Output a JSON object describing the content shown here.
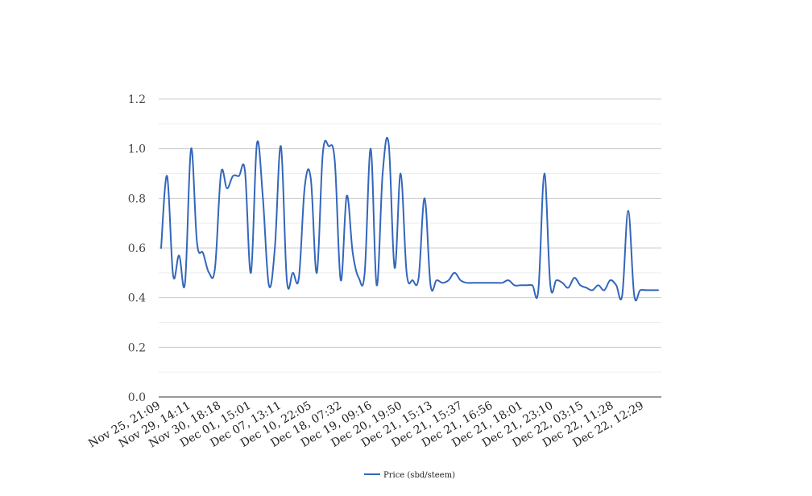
{
  "chart_data": {
    "type": "line",
    "title": "",
    "xlabel": "",
    "ylabel": "",
    "ylim": [
      0,
      1.2
    ],
    "yticks": [
      0.0,
      0.2,
      0.4,
      0.6,
      0.8,
      1.0,
      1.2
    ],
    "ytick_labels": [
      "0.0",
      "0.2",
      "0.4",
      "0.6",
      "0.8",
      "1.0",
      "1.2"
    ],
    "x_tick_labels": [
      "Nov 25, 21:09",
      "Nov 29, 14:11",
      "Nov 30, 18:18",
      "Dec 01, 15:01",
      "Dec 07, 13:11",
      "Dec 10, 22:05",
      "Dec 18, 07:32",
      "Dec 19, 09:16",
      "Dec 20, 19:50",
      "Dec 21, 15:13",
      "Dec 21, 15:37",
      "Dec 21, 16:56",
      "Dec 21, 18:01",
      "Dec 21, 23:10",
      "Dec 22, 03:15",
      "Dec 22, 11:28",
      "Dec 22, 12:29"
    ],
    "grid": true,
    "legend_position": "bottom",
    "line_color": "#3366bb",
    "series": [
      {
        "name": "Price (sbd/steem)",
        "values": [
          0.6,
          0.89,
          0.49,
          0.57,
          0.46,
          1.0,
          0.62,
          0.58,
          0.5,
          0.52,
          0.9,
          0.84,
          0.89,
          0.89,
          0.91,
          0.5,
          1.02,
          0.8,
          0.45,
          0.6,
          1.01,
          0.47,
          0.5,
          0.48,
          0.85,
          0.88,
          0.5,
          0.98,
          1.01,
          0.95,
          0.47,
          0.81,
          0.58,
          0.48,
          0.5,
          1.0,
          0.45,
          0.9,
          1.02,
          0.52,
          0.9,
          0.5,
          0.47,
          0.48,
          0.8,
          0.45,
          0.47,
          0.46,
          0.47,
          0.5,
          0.47,
          0.46,
          0.46,
          0.46,
          0.46,
          0.46,
          0.46,
          0.46,
          0.47,
          0.45,
          0.45,
          0.45,
          0.45,
          0.43,
          0.9,
          0.45,
          0.47,
          0.46,
          0.44,
          0.48,
          0.45,
          0.44,
          0.43,
          0.45,
          0.43,
          0.47,
          0.45,
          0.41,
          0.75,
          0.41,
          0.43,
          0.43,
          0.43,
          0.43
        ]
      }
    ]
  }
}
